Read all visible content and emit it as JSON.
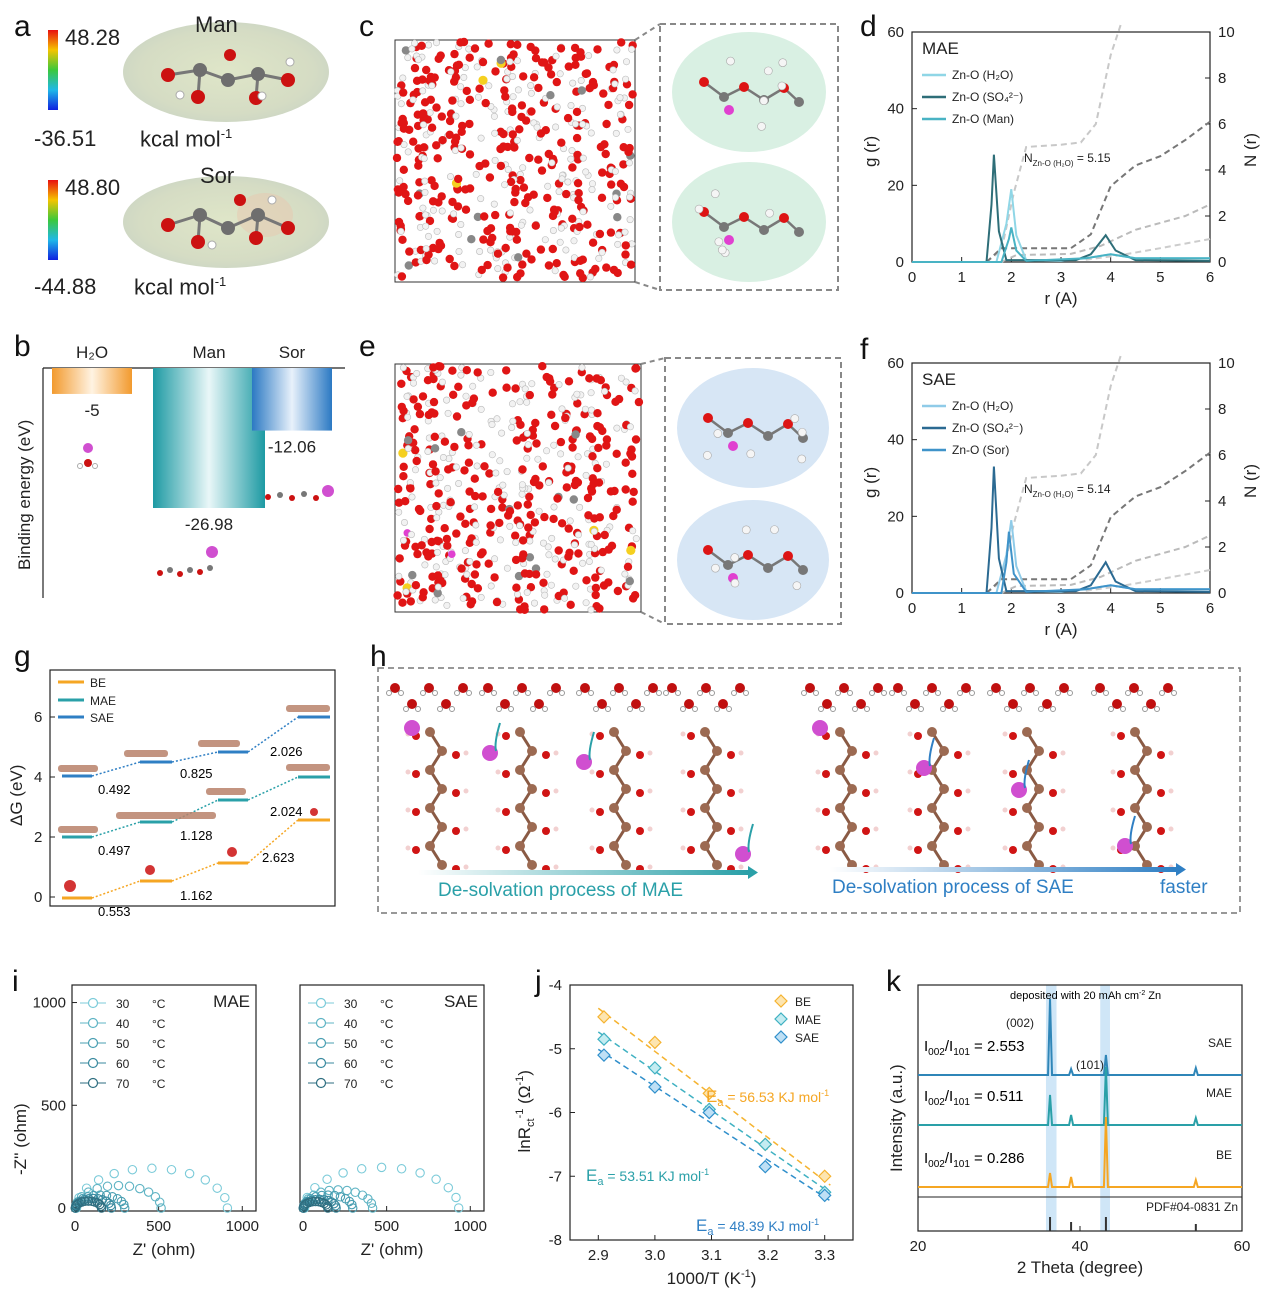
{
  "panels": {
    "a": {
      "label": "a",
      "man": {
        "name": "Man",
        "max": "48.28",
        "min": "-36.51",
        "unit": "kcal mol",
        "unit_sup": "-1"
      },
      "sor": {
        "name": "Sor",
        "max": "48.80",
        "min": "-44.88",
        "unit": "kcal mol",
        "unit_sup": "-1"
      }
    },
    "b": {
      "label": "b",
      "ylabel": "Binding energy (eV)",
      "bars": [
        {
          "name": "H₂O",
          "value": -5,
          "label": "-5",
          "color": "#f5a623"
        },
        {
          "name": "Man",
          "value": -26.98,
          "label": "-26.98",
          "color": "#2aa0a8"
        },
        {
          "name": "Sor",
          "value": -12.06,
          "label": "-12.06",
          "color": "#2f7fc4"
        }
      ]
    },
    "c": {
      "label": "c"
    },
    "d": {
      "label": "d",
      "tag": "MAE",
      "legend": [
        "Zn-O (H₂O)",
        "Zn-O (SO₄²⁻)",
        "Zn-O (Man)"
      ],
      "annotation": "N",
      "annotation_sub": "Zn-O (H₂O)",
      "annotation_val": " = 5.15",
      "xlabel": "r (A)",
      "ylabel": "g (r)",
      "y2label": "N (r)",
      "xticks": [
        "0",
        "1",
        "2",
        "3",
        "4",
        "5",
        "6"
      ],
      "yticks": [
        "0",
        "20",
        "40",
        "60"
      ],
      "y2ticks": [
        "0",
        "2",
        "4",
        "6",
        "8",
        "10"
      ]
    },
    "e": {
      "label": "e"
    },
    "f": {
      "label": "f",
      "tag": "SAE",
      "legend": [
        "Zn-O (H₂O)",
        "Zn-O (SO₄²⁻)",
        "Zn-O (Sor)"
      ],
      "annotation": "N",
      "annotation_sub": "Zn-O (H₂O)",
      "annotation_val": " = 5.14",
      "xlabel": "r (A)",
      "ylabel": "g (r)",
      "y2label": "N (r)",
      "xticks": [
        "0",
        "1",
        "2",
        "3",
        "4",
        "5",
        "6"
      ],
      "yticks": [
        "0",
        "20",
        "40",
        "60"
      ],
      "y2ticks": [
        "0",
        "2",
        "4",
        "6",
        "8",
        "10"
      ]
    },
    "g": {
      "label": "g",
      "ylabel": "ΔG (eV)",
      "yticks": [
        "0",
        "2",
        "4",
        "6"
      ],
      "legend": [
        "BE",
        "MAE",
        "SAE"
      ],
      "values": {
        "SAE": [
          "0.492",
          "0.825",
          "2.026"
        ],
        "MAE": [
          "0.497",
          "1.128",
          "2.024"
        ],
        "BE": [
          "0.553",
          "1.162",
          "2.623"
        ]
      }
    },
    "h": {
      "label": "h",
      "caption_mae": "De-solvation process of MAE",
      "caption_sae": "De-solvation process of SAE",
      "faster": "faster"
    },
    "i": {
      "label": "i",
      "temps": [
        "30",
        "40",
        "50",
        "60",
        "70"
      ],
      "temp_unit": "°C",
      "left_tag": "MAE",
      "right_tag": "SAE",
      "xlabel": "Z' (ohm)",
      "ylabel": "-Z'' (ohm)",
      "xticks": [
        "0",
        "500",
        "1000"
      ],
      "yticks": [
        "0",
        "500",
        "1000"
      ]
    },
    "j": {
      "label": "j",
      "xlabel": "1000/T (K",
      "xlabel_sup": "-1",
      "ylabel": "lnR",
      "legend": [
        "BE",
        "MAE",
        "SAE"
      ],
      "ea_be": "56.53 KJ mol",
      "ea_mae": "53.51 KJ mol",
      "ea_sae": "48.39 KJ mol",
      "ea_sup": "-1",
      "ea_prefix": "E",
      "ea_sub": "a",
      "xticks": [
        "2.9",
        "3.0",
        "3.1",
        "3.2",
        "3.3"
      ],
      "yticks": [
        "-4",
        "-5",
        "-6",
        "-7",
        "-8"
      ]
    },
    "k": {
      "label": "k",
      "note": "deposited with 20 mAh cm",
      "note_sup": "-2",
      "note_tail": " Zn",
      "peak1": "(002)",
      "peak2": "(101)",
      "ratios": [
        {
          "text": " = 2.553",
          "sample": "SAE"
        },
        {
          "text": " = 0.511",
          "sample": "MAE"
        },
        {
          "text": " = 0.286",
          "sample": "BE"
        }
      ],
      "ratio_prefix": "I",
      "pdf": "PDF#04-0831 Zn",
      "xlabel": "2 Theta (degree)",
      "ylabel": "Intensity (a.u.)",
      "xticks": [
        "20",
        "40",
        "60"
      ]
    }
  },
  "chart_data": [
    {
      "type": "bar",
      "panel": "b",
      "categories": [
        "H₂O",
        "Man",
        "Sor"
      ],
      "values": [
        -5,
        -26.98,
        -12.06
      ],
      "ylabel": "Binding energy (eV)"
    },
    {
      "type": "line",
      "panel": "d",
      "xlabel": "r (A)",
      "ylabel": "g (r)",
      "xlim": [
        0,
        6
      ],
      "ylim": [
        0,
        60
      ],
      "y2lim": [
        0,
        10
      ],
      "series": [
        {
          "name": "Zn-O (H₂O)",
          "x": [
            1.7,
            1.9,
            2.0,
            2.1,
            2.3,
            3.0,
            3.5,
            4.0,
            4.5,
            5.0,
            6.0
          ],
          "values": [
            0,
            10,
            19,
            7,
            0.5,
            0.3,
            1,
            2,
            1,
            1,
            1
          ]
        },
        {
          "name": "Zn-O (SO₄²⁻)",
          "x": [
            1.5,
            1.6,
            1.65,
            1.75,
            1.9,
            3.3,
            3.6,
            3.9,
            4.1,
            4.5,
            6.0
          ],
          "values": [
            0,
            15,
            28,
            8,
            0.5,
            0.5,
            2,
            7,
            3,
            0.5,
            0.3
          ]
        },
        {
          "name": "Zn-O (Man)",
          "x": [
            1.8,
            1.95,
            2.0,
            2.1,
            2.3,
            3.5,
            4.0,
            4.5,
            6.0
          ],
          "values": [
            0,
            6,
            9,
            3,
            0.3,
            1,
            2,
            1,
            1
          ]
        }
      ]
    },
    {
      "type": "line",
      "panel": "f",
      "xlabel": "r (A)",
      "ylabel": "g (r)",
      "xlim": [
        0,
        6
      ],
      "ylim": [
        0,
        60
      ],
      "y2lim": [
        0,
        10
      ],
      "series": [
        {
          "name": "Zn-O (H₂O)",
          "x": [
            1.7,
            1.9,
            2.0,
            2.1,
            2.3,
            3.0,
            3.5,
            4.0,
            4.5,
            5.0,
            6.0
          ],
          "values": [
            0,
            10,
            19,
            7,
            0.5,
            0.3,
            1,
            2,
            1,
            1,
            1
          ]
        },
        {
          "name": "Zn-O (SO₄²⁻)",
          "x": [
            1.5,
            1.6,
            1.65,
            1.75,
            1.9,
            3.3,
            3.6,
            3.9,
            4.1,
            4.5,
            6.0
          ],
          "values": [
            0,
            17,
            33,
            9,
            0.5,
            0.5,
            2,
            8,
            3,
            0.5,
            0.3
          ]
        },
        {
          "name": "Zn-O (Sor)",
          "x": [
            1.8,
            1.9,
            1.95,
            2.05,
            2.3,
            3.5,
            4.0,
            4.5,
            6.0
          ],
          "values": [
            0,
            8,
            16,
            5,
            0.3,
            1,
            2,
            1,
            1
          ]
        }
      ]
    },
    {
      "type": "scatter",
      "panel": "j",
      "xlim": [
        2.85,
        3.35
      ],
      "ylim": [
        -8,
        -4
      ],
      "series": [
        {
          "name": "BE",
          "x": [
            2.91,
            3.0,
            3.096,
            3.195,
            3.3
          ],
          "values": [
            -4.5,
            -4.9,
            -5.7,
            -6.5,
            -7.0
          ]
        },
        {
          "name": "MAE",
          "x": [
            2.91,
            3.0,
            3.096,
            3.195,
            3.3
          ],
          "values": [
            -4.85,
            -5.3,
            -5.95,
            -6.5,
            -7.25
          ]
        },
        {
          "name": "SAE",
          "x": [
            2.91,
            3.0,
            3.096,
            3.195,
            3.3
          ],
          "values": [
            -5.1,
            -5.6,
            -6.0,
            -6.85,
            -7.3
          ]
        }
      ]
    }
  ]
}
